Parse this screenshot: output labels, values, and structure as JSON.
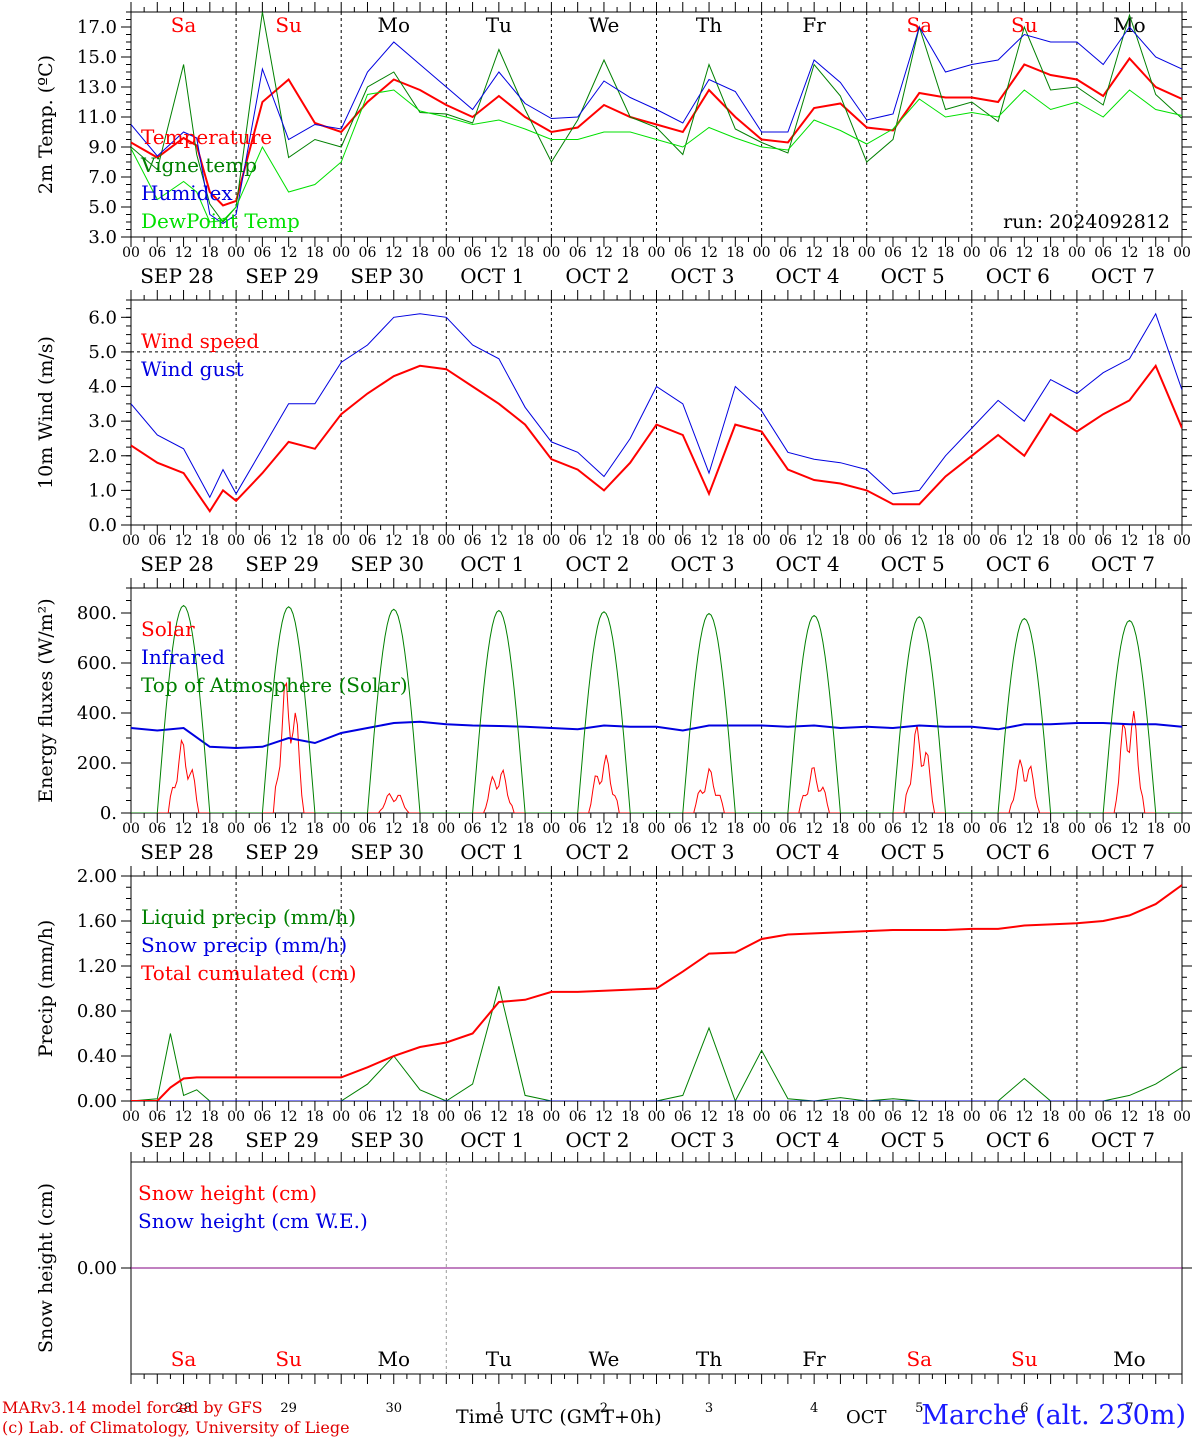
{
  "colors": {
    "red": "#ff0000",
    "darkgreen": "#008000",
    "blue": "#0000e0",
    "lightgreen": "#00e000",
    "purple": "#800080",
    "grid": "#000000"
  },
  "hour_ticks": [
    "00",
    "06",
    "12",
    "18"
  ],
  "end_tick": "00",
  "date_labels": [
    "SEP 28",
    "SEP 29",
    "SEP 30",
    "OCT  1",
    "OCT  2",
    "OCT  3",
    "OCT  4",
    "OCT  5",
    "OCT  6",
    "OCT  7"
  ],
  "weekdays": [
    {
      "label": "Sa",
      "weekend": true
    },
    {
      "label": "Su",
      "weekend": true
    },
    {
      "label": "Mo",
      "weekend": false
    },
    {
      "label": "Tu",
      "weekend": false
    },
    {
      "label": "We",
      "weekend": false
    },
    {
      "label": "Th",
      "weekend": false
    },
    {
      "label": "Fr",
      "weekend": false
    },
    {
      "label": "Sa",
      "weekend": true
    },
    {
      "label": "Su",
      "weekend": true
    },
    {
      "label": "Mo",
      "weekend": false
    }
  ],
  "bottom_day_numbers": [
    "28",
    "29",
    "30",
    "1",
    "2",
    "3",
    "4",
    "5",
    "6",
    "7"
  ],
  "footer": {
    "credit_line1": "MARv3.14 model forced by GFS",
    "credit_line2": "(c) Lab. of Climatology, University of Liege",
    "time_label": "Time UTC (GMT+0h)",
    "month_label": "OCT",
    "station": "Marche (alt. 230m)"
  },
  "chart_data": [
    {
      "type": "line",
      "id": "temp",
      "ylabel": "2m Temp. (ºC)",
      "ylim": [
        3,
        18
      ],
      "yticks": [
        {
          "v": 3,
          "t": "3.0"
        },
        {
          "v": 5,
          "t": "5.0"
        },
        {
          "v": 7,
          "t": "7.0"
        },
        {
          "v": 9,
          "t": "9.0"
        },
        {
          "v": 11,
          "t": "11.0"
        },
        {
          "v": 13,
          "t": "13.0"
        },
        {
          "v": 15,
          "t": "15.0"
        },
        {
          "v": 17,
          "t": "17.0"
        }
      ],
      "annotation": "run: 2024092812",
      "x_hours": [
        0,
        6,
        12,
        15,
        18,
        21,
        24,
        30,
        36,
        42,
        48,
        54,
        60,
        66,
        72,
        78,
        84,
        90,
        96,
        102,
        108,
        114,
        120,
        126,
        132,
        138,
        144,
        150,
        156,
        162,
        168,
        174,
        180,
        186,
        192,
        198,
        204,
        210,
        216,
        222,
        228,
        234,
        240
      ],
      "series": [
        {
          "name": "Temperature",
          "color": "#ff0000",
          "width": 2,
          "values": [
            9.3,
            8.3,
            9.6,
            9.1,
            6.0,
            5.1,
            5.4,
            12.0,
            13.5,
            10.6,
            10.0,
            12.0,
            13.5,
            12.8,
            11.8,
            11.0,
            12.4,
            11.0,
            10.0,
            10.3,
            11.8,
            11.0,
            10.5,
            10.0,
            12.8,
            11.0,
            9.5,
            9.3,
            11.6,
            11.9,
            10.3,
            10.1,
            12.6,
            12.3,
            12.3,
            12.0,
            14.5,
            13.8,
            13.5,
            12.4,
            14.9,
            13.0,
            12.2
          ]
        },
        {
          "name": "Vigne temp",
          "color": "#008000",
          "width": 1,
          "values": [
            9.0,
            7.5,
            14.5,
            8.5,
            5.2,
            4.0,
            5.0,
            18.0,
            8.3,
            9.5,
            9.0,
            13.0,
            14.0,
            11.3,
            11.2,
            10.6,
            15.5,
            11.5,
            8.0,
            10.8,
            14.8,
            11.0,
            10.3,
            8.5,
            14.5,
            10.2,
            9.3,
            8.6,
            14.5,
            12.4,
            8.0,
            9.5,
            17.0,
            11.5,
            12.0,
            10.7,
            17.0,
            12.8,
            13.0,
            11.8,
            17.8,
            12.5,
            10.9
          ]
        },
        {
          "name": "Humidex",
          "color": "#0000e0",
          "width": 1,
          "values": [
            10.5,
            8.4,
            10.0,
            9.6,
            4.5,
            3.9,
            4.5,
            14.2,
            9.5,
            10.5,
            10.2,
            14.0,
            16.0,
            14.5,
            13.0,
            11.5,
            14.0,
            11.9,
            10.9,
            11.0,
            13.4,
            12.3,
            11.5,
            10.6,
            13.5,
            12.7,
            10.0,
            10.0,
            14.8,
            13.3,
            10.8,
            11.2,
            17.0,
            14.0,
            14.5,
            14.8,
            16.5,
            16.0,
            16.0,
            14.5,
            17.0,
            15.0,
            14.2
          ]
        },
        {
          "name": "DewPoint Temp",
          "color": "#00e000",
          "width": 1,
          "values": [
            8.9,
            5.5,
            6.7,
            6.0,
            4.0,
            4.1,
            5.0,
            9.0,
            6.0,
            6.5,
            8.0,
            12.5,
            12.8,
            11.4,
            11.0,
            10.5,
            10.8,
            10.2,
            9.5,
            9.5,
            10.0,
            10.0,
            9.5,
            9.0,
            10.3,
            9.6,
            9.0,
            8.8,
            10.8,
            10.1,
            9.2,
            10.2,
            12.2,
            11.0,
            11.3,
            11.0,
            12.8,
            11.5,
            12.0,
            11.0,
            12.8,
            11.5,
            11.1
          ]
        }
      ]
    },
    {
      "type": "line",
      "id": "wind",
      "ylabel": "10m Wind (m/s)",
      "ylim": [
        0,
        6.5
      ],
      "yticks": [
        {
          "v": 0,
          "t": "0.0"
        },
        {
          "v": 1,
          "t": "1.0"
        },
        {
          "v": 2,
          "t": "2.0"
        },
        {
          "v": 3,
          "t": "3.0"
        },
        {
          "v": 4,
          "t": "4.0"
        },
        {
          "v": 5,
          "t": "5.0"
        },
        {
          "v": 6,
          "t": "6.0"
        }
      ],
      "hline": 5.0,
      "x_hours": [
        0,
        6,
        12,
        18,
        21,
        24,
        30,
        36,
        42,
        48,
        54,
        60,
        66,
        72,
        78,
        84,
        90,
        96,
        102,
        108,
        114,
        120,
        126,
        132,
        138,
        144,
        150,
        156,
        162,
        168,
        174,
        180,
        186,
        192,
        198,
        204,
        210,
        216,
        222,
        228,
        234,
        240
      ],
      "series": [
        {
          "name": "Wind speed",
          "color": "#ff0000",
          "width": 2,
          "values": [
            2.3,
            1.8,
            1.5,
            0.4,
            1.0,
            0.7,
            1.5,
            2.4,
            2.2,
            3.2,
            3.8,
            4.3,
            4.6,
            4.5,
            4.0,
            3.5,
            2.9,
            1.9,
            1.6,
            1.0,
            1.8,
            2.9,
            2.6,
            0.9,
            2.9,
            2.7,
            1.6,
            1.3,
            1.2,
            1.0,
            0.6,
            0.6,
            1.4,
            2.0,
            2.6,
            2.0,
            3.2,
            2.7,
            3.2,
            3.6,
            4.6,
            2.8
          ]
        },
        {
          "name": "Wind gust",
          "color": "#0000e0",
          "width": 1,
          "values": [
            3.5,
            2.6,
            2.2,
            0.8,
            1.6,
            0.9,
            2.2,
            3.5,
            3.5,
            4.7,
            5.2,
            6.0,
            6.1,
            6.0,
            5.2,
            4.8,
            3.4,
            2.4,
            2.1,
            1.4,
            2.5,
            4.0,
            3.5,
            1.5,
            4.0,
            3.3,
            2.1,
            1.9,
            1.8,
            1.6,
            0.9,
            1.0,
            2.0,
            2.8,
            3.6,
            3.0,
            4.2,
            3.8,
            4.4,
            4.8,
            6.1,
            3.9
          ]
        }
      ]
    },
    {
      "type": "line",
      "id": "energy",
      "ylabel": "Energy fluxes (W/m²)",
      "ylim": [
        0,
        900
      ],
      "yticks": [
        {
          "v": 0,
          "t": "0."
        },
        {
          "v": 200,
          "t": "200."
        },
        {
          "v": 400,
          "t": "400."
        },
        {
          "v": 600,
          "t": "600."
        },
        {
          "v": 800,
          "t": "800."
        }
      ],
      "toa_peaks": [
        830,
        825,
        815,
        810,
        805,
        798,
        790,
        785,
        778,
        770
      ],
      "toa_halfwidth_hours": 6,
      "solar_peaks": [
        300,
        570,
        90,
        190,
        240,
        180,
        190,
        370,
        240,
        460
      ],
      "x_hours": [
        0,
        6,
        12,
        18,
        24,
        30,
        36,
        42,
        48,
        54,
        60,
        66,
        72,
        78,
        84,
        90,
        96,
        102,
        108,
        114,
        120,
        126,
        132,
        138,
        144,
        150,
        156,
        162,
        168,
        174,
        180,
        186,
        192,
        198,
        204,
        210,
        216,
        222,
        228,
        234,
        240
      ],
      "series": [
        {
          "name": "Solar",
          "color": "#ff0000",
          "width": 1
        },
        {
          "name": "Infrared",
          "color": "#0000e0",
          "width": 2,
          "values": [
            340,
            330,
            340,
            265,
            260,
            265,
            300,
            280,
            320,
            340,
            360,
            365,
            355,
            350,
            348,
            345,
            340,
            335,
            350,
            345,
            345,
            330,
            350,
            350,
            350,
            345,
            350,
            340,
            345,
            340,
            350,
            345,
            345,
            335,
            355,
            355,
            360,
            360,
            355,
            355,
            345
          ]
        },
        {
          "name": "Top of Atmosphere (Solar)",
          "color": "#008000",
          "width": 1
        }
      ]
    },
    {
      "type": "line",
      "id": "precip",
      "ylabel": "Precip (mm/h)",
      "ylim": [
        0,
        2
      ],
      "yticks": [
        {
          "v": 0,
          "t": "0.00"
        },
        {
          "v": 0.4,
          "t": "0.40"
        },
        {
          "v": 0.8,
          "t": "0.80"
        },
        {
          "v": 1.2,
          "t": "1.20"
        },
        {
          "v": 1.6,
          "t": "1.60"
        },
        {
          "v": 2.0,
          "t": "2.00"
        }
      ],
      "x_hours": [
        0,
        6,
        9,
        12,
        15,
        18,
        24,
        30,
        36,
        42,
        48,
        54,
        60,
        66,
        72,
        78,
        84,
        90,
        96,
        102,
        108,
        114,
        120,
        126,
        132,
        138,
        144,
        150,
        156,
        162,
        168,
        174,
        180,
        186,
        192,
        198,
        204,
        210,
        216,
        222,
        228,
        234,
        240
      ],
      "series": [
        {
          "name": "Liquid precip (mm/h)",
          "color": "#008000",
          "width": 1,
          "values": [
            0.0,
            0.02,
            0.6,
            0.05,
            0.1,
            0.0,
            0.0,
            0.0,
            0.0,
            0.0,
            0.0,
            0.15,
            0.4,
            0.1,
            0.0,
            0.15,
            1.02,
            0.05,
            0.0,
            0.0,
            0.0,
            0.0,
            0.0,
            0.05,
            0.65,
            0.0,
            0.45,
            0.02,
            0.0,
            0.03,
            0.0,
            0.02,
            0.0,
            0.0,
            0.0,
            0.0,
            0.2,
            0.0,
            0.0,
            0.0,
            0.05,
            0.15,
            0.3
          ]
        },
        {
          "name": "Snow precip (mm/h)",
          "color": "#0000e0",
          "width": 1,
          "values": [
            0,
            0,
            0,
            0,
            0,
            0,
            0,
            0,
            0,
            0,
            0,
            0,
            0,
            0,
            0,
            0,
            0,
            0,
            0,
            0,
            0,
            0,
            0,
            0,
            0,
            0,
            0,
            0,
            0,
            0,
            0,
            0,
            0,
            0,
            0,
            0,
            0,
            0,
            0,
            0,
            0,
            0,
            0
          ]
        },
        {
          "name": "Total cumulated (cm)",
          "color": "#ff0000",
          "width": 2,
          "values": [
            0.0,
            0.0,
            0.12,
            0.2,
            0.21,
            0.21,
            0.21,
            0.21,
            0.21,
            0.21,
            0.21,
            0.3,
            0.4,
            0.48,
            0.52,
            0.6,
            0.88,
            0.9,
            0.97,
            0.97,
            0.98,
            0.99,
            1.0,
            1.15,
            1.31,
            1.32,
            1.44,
            1.48,
            1.49,
            1.5,
            1.51,
            1.52,
            1.52,
            1.52,
            1.53,
            1.53,
            1.56,
            1.57,
            1.58,
            1.6,
            1.65,
            1.75,
            1.92
          ]
        }
      ]
    },
    {
      "type": "line",
      "id": "snow",
      "ylabel": "Snow height (cm)",
      "ylim": [
        -1,
        1
      ],
      "yticks": [
        {
          "v": 0,
          "t": "0.00"
        }
      ],
      "x_hours": [
        0,
        240
      ],
      "series": [
        {
          "name": "Snow height (cm)",
          "color": "#ff0000",
          "width": 1,
          "values": [
            0,
            0
          ]
        },
        {
          "name": "Snow height (cm W.E.)",
          "color": "#0000e0",
          "width": 1,
          "values": [
            0,
            0
          ]
        }
      ]
    }
  ]
}
